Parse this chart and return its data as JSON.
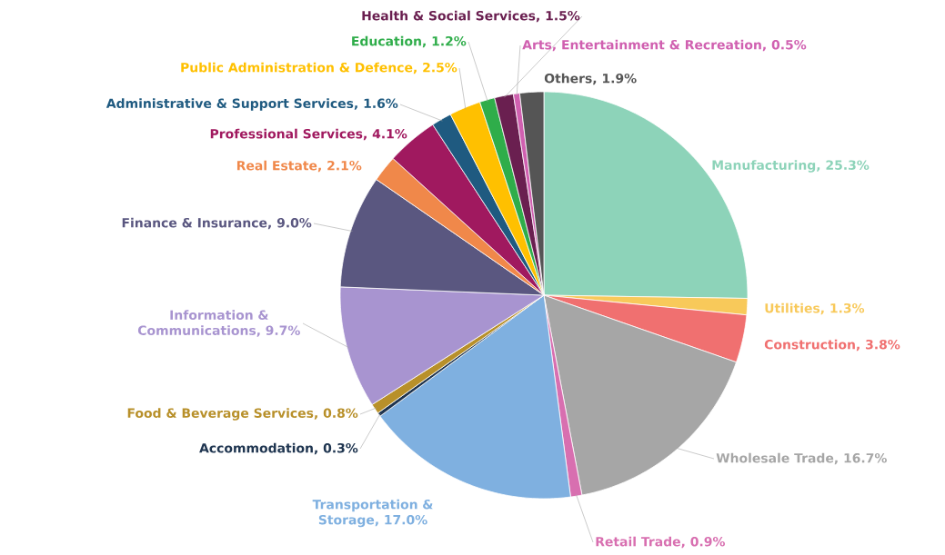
{
  "chart_data": {
    "type": "pie",
    "categories": [
      "Manufacturing",
      "Utilities",
      "Construction",
      "Wholesale Trade",
      "Retail Trade",
      "Transportation & Storage",
      "Accommodation",
      "Food & Beverage Services",
      "Information & Communications",
      "Finance & Insurance",
      "Real Estate",
      "Professional Services",
      "Administrative & Support Services",
      "Public Administration & Defence",
      "Education",
      "Health & Social Services",
      "Arts, Entertainment & Recreation",
      "Others"
    ],
    "values": [
      25.3,
      1.3,
      3.8,
      16.7,
      0.9,
      17.0,
      0.3,
      0.8,
      9.7,
      9.0,
      2.1,
      4.1,
      1.6,
      2.5,
      1.2,
      1.5,
      0.5,
      1.9
    ],
    "value_labels": [
      ", 25.3%",
      ", 1.3%",
      ", 3.8%",
      ", 16.7%",
      ", 0.9%",
      ", 17.0%",
      ", 0.3%",
      ", 0.8%",
      ", 9.7%",
      ", 9.0%",
      ", 2.1%",
      ", 4.1%",
      ", 1.6%",
      ", 2.5%",
      ", 1.2%",
      ", 1.5%",
      ", 0.5%",
      ", 1.9%"
    ],
    "colors": [
      "#8dd3b9",
      "#f8c95a",
      "#f07070",
      "#a6a6a6",
      "#d86fb0",
      "#7fb0e0",
      "#1f3550",
      "#b8902a",
      "#a894d0",
      "#5a5780",
      "#f0884a",
      "#a0195f",
      "#1f5a80",
      "#ffc000",
      "#2fad4a",
      "#6a1f50",
      "#d060b0",
      "#555555"
    ]
  }
}
